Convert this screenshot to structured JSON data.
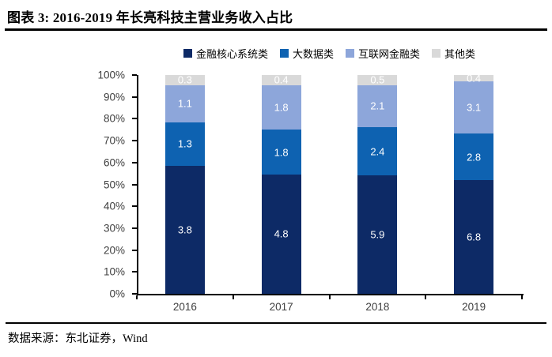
{
  "header": {
    "title": "图表 3: 2016-2019 年长亮科技主营业务收入占比"
  },
  "footer": {
    "source": "数据来源：东北证券，Wind"
  },
  "colors": {
    "core_system": "#0D2A66",
    "big_data": "#0E62B1",
    "internet_finance": "#8DA6DA",
    "other": "#D9D9D9",
    "axis": "#000000",
    "tick_label": "#3F3F3F",
    "value_label": "#FFFFFF"
  },
  "chart_data": {
    "type": "bar",
    "stacked": true,
    "normalized_to_100_percent": true,
    "title": "2016-2019 年长亮科技主营业务收入占比",
    "categories": [
      "2016",
      "2017",
      "2018",
      "2019"
    ],
    "series": [
      {
        "name": "金融核心系统类",
        "color": "#0D2A66",
        "values": [
          3.8,
          4.8,
          5.9,
          6.8
        ]
      },
      {
        "name": "大数据类",
        "color": "#0E62B1",
        "values": [
          1.3,
          1.8,
          2.4,
          2.8
        ]
      },
      {
        "name": "互联网金融类",
        "color": "#8DA6DA",
        "values": [
          1.1,
          1.8,
          2.1,
          3.1
        ]
      },
      {
        "name": "其他类",
        "color": "#D9D9D9",
        "values": [
          0.3,
          0.4,
          0.5,
          0.4
        ]
      }
    ],
    "xlabel": "",
    "ylabel": "",
    "ylim": [
      0,
      100
    ],
    "y_ticks": [
      "100%",
      "90%",
      "80%",
      "70%",
      "60%",
      "50%",
      "40%",
      "30%",
      "20%",
      "10%",
      "0%"
    ],
    "grid": false,
    "legend_position": "top"
  }
}
